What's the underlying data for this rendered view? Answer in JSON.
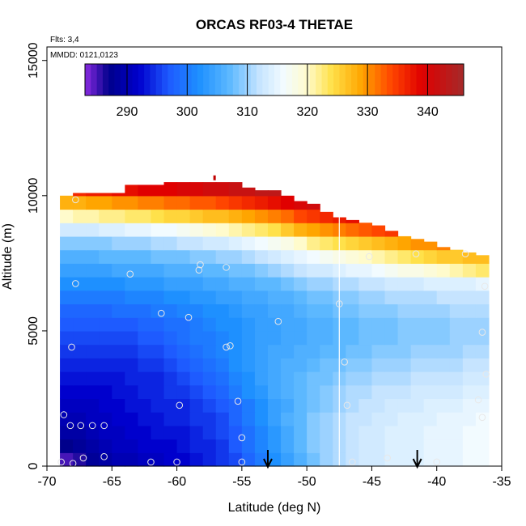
{
  "chart_data": {
    "type": "heatmap",
    "title": "ORCAS RF03-4 THETAE",
    "annotations": [
      "Flts: 3,4",
      "MMDD: 0121,0123"
    ],
    "xlabel": "Latitude (deg N)",
    "ylabel": "Altitude (m)",
    "xlim": [
      -70,
      -35
    ],
    "ylim": [
      0,
      15500
    ],
    "x_ticks": [
      -70,
      -65,
      -60,
      -55,
      -50,
      -45,
      -40,
      -35
    ],
    "y_ticks": [
      0,
      5000,
      10000,
      15000
    ],
    "colorbar": {
      "range": [
        283,
        346
      ],
      "ticks": [
        290,
        300,
        310,
        320,
        330,
        340
      ],
      "stops": [
        {
          "v": 283,
          "c": "#8b2be2"
        },
        {
          "v": 287,
          "c": "#00008b"
        },
        {
          "v": 292,
          "c": "#0000cd"
        },
        {
          "v": 297,
          "c": "#1e5bff"
        },
        {
          "v": 302,
          "c": "#1e90ff"
        },
        {
          "v": 307,
          "c": "#5cb8ff"
        },
        {
          "v": 312,
          "c": "#c6e4ff"
        },
        {
          "v": 316,
          "c": "#f2fbff"
        },
        {
          "v": 320,
          "c": "#fffbcc"
        },
        {
          "v": 324,
          "c": "#ffe14a"
        },
        {
          "v": 329,
          "c": "#ffa500"
        },
        {
          "v": 334,
          "c": "#ff4500"
        },
        {
          "v": 339,
          "c": "#e00000"
        },
        {
          "v": 346,
          "c": "#a52a2a"
        }
      ]
    },
    "field": {
      "lat_edges": [
        -69,
        -68,
        -67,
        -66,
        -65,
        -64,
        -63,
        -62,
        -61,
        -60,
        -59,
        -58,
        -57,
        -56,
        -55,
        -54,
        -53,
        -52,
        -51,
        -50,
        -49,
        -48,
        -47,
        -46,
        -45,
        -44,
        -43,
        -42,
        -41,
        -40,
        -39,
        -38,
        -37,
        -36
      ],
      "alt_edges": [
        0,
        500,
        1000,
        1500,
        2000,
        2500,
        3000,
        3500,
        4000,
        4500,
        5000,
        5500,
        6000,
        6500,
        7000,
        7500,
        8000,
        8500,
        9000,
        9500,
        10000,
        10500,
        11000
      ],
      "data_top_alt": [
        10000,
        10100,
        10100,
        10100,
        10100,
        10400,
        10400,
        10400,
        10500,
        10500,
        10500,
        10500,
        10500,
        10500,
        10300,
        10200,
        10200,
        10000,
        9800,
        9700,
        9400,
        9200,
        9100,
        9000,
        8900,
        8700,
        8500,
        8400,
        8300,
        8100,
        8000,
        7900,
        7800
      ],
      "theta_e": [
        [
          285,
          286,
          288,
          289,
          290,
          290,
          291,
          291,
          292,
          292,
          293,
          294,
          295,
          296,
          298,
          300,
          302,
          304,
          306,
          308,
          310,
          311,
          312,
          313,
          313,
          314,
          314,
          314,
          315,
          315,
          315,
          316,
          316
        ],
        [
          287,
          288,
          289,
          290,
          291,
          291,
          292,
          292,
          292,
          293,
          294,
          294,
          295,
          297,
          299,
          301,
          303,
          305,
          307,
          309,
          310,
          311,
          312,
          313,
          313,
          314,
          314,
          314,
          315,
          315,
          315,
          316,
          316
        ],
        [
          289,
          289,
          290,
          291,
          291,
          292,
          292,
          293,
          293,
          293,
          294,
          295,
          296,
          297,
          299,
          301,
          303,
          305,
          307,
          309,
          310,
          311,
          312,
          313,
          313,
          314,
          314,
          314,
          315,
          315,
          315,
          316,
          316
        ],
        [
          290,
          290,
          291,
          291,
          292,
          292,
          293,
          293,
          294,
          294,
          295,
          295,
          296,
          298,
          300,
          302,
          304,
          306,
          307,
          309,
          310,
          311,
          312,
          312,
          313,
          313,
          314,
          314,
          314,
          315,
          315,
          315,
          316
        ],
        [
          291,
          291,
          291,
          292,
          292,
          293,
          293,
          294,
          294,
          294,
          295,
          296,
          297,
          298,
          300,
          302,
          304,
          305,
          307,
          308,
          309,
          310,
          311,
          312,
          312,
          313,
          313,
          313,
          314,
          314,
          314,
          315,
          315
        ],
        [
          292,
          292,
          292,
          292,
          293,
          293,
          294,
          294,
          295,
          295,
          296,
          297,
          298,
          300,
          302,
          303,
          305,
          306,
          307,
          308,
          309,
          310,
          311,
          311,
          312,
          312,
          312,
          313,
          313,
          313,
          313,
          314,
          314
        ],
        [
          293,
          293,
          293,
          293,
          293,
          294,
          294,
          294,
          295,
          296,
          297,
          298,
          299,
          301,
          302,
          304,
          305,
          306,
          307,
          308,
          308,
          309,
          310,
          310,
          311,
          311,
          311,
          312,
          312,
          312,
          312,
          313,
          313
        ],
        [
          294,
          294,
          294,
          294,
          294,
          294,
          295,
          295,
          296,
          297,
          298,
          299,
          300,
          302,
          303,
          304,
          305,
          306,
          306,
          307,
          308,
          308,
          309,
          309,
          310,
          310,
          310,
          311,
          311,
          311,
          311,
          312,
          312
        ],
        [
          295,
          295,
          295,
          295,
          295,
          295,
          296,
          296,
          297,
          298,
          299,
          300,
          301,
          302,
          303,
          304,
          305,
          305,
          306,
          306,
          307,
          307,
          308,
          308,
          309,
          309,
          309,
          310,
          310,
          310,
          310,
          311,
          311
        ],
        [
          296,
          296,
          296,
          296,
          296,
          296,
          297,
          297,
          298,
          299,
          300,
          300,
          301,
          302,
          303,
          304,
          304,
          305,
          305,
          306,
          306,
          307,
          307,
          308,
          308,
          308,
          309,
          309,
          309,
          309,
          310,
          310,
          310
        ],
        [
          297,
          297,
          297,
          297,
          297,
          297,
          298,
          298,
          299,
          299,
          300,
          301,
          302,
          302,
          303,
          304,
          304,
          305,
          305,
          306,
          306,
          307,
          307,
          308,
          308,
          308,
          309,
          309,
          309,
          309,
          310,
          310,
          310
        ],
        [
          298,
          298,
          298,
          298,
          299,
          299,
          299,
          300,
          300,
          301,
          301,
          302,
          302,
          303,
          304,
          304,
          305,
          305,
          306,
          307,
          307,
          308,
          308,
          309,
          309,
          309,
          310,
          310,
          310,
          310,
          311,
          311,
          311
        ],
        [
          300,
          300,
          300,
          300,
          300,
          301,
          301,
          301,
          302,
          302,
          303,
          303,
          304,
          304,
          305,
          305,
          306,
          306,
          307,
          308,
          308,
          309,
          309,
          310,
          310,
          311,
          311,
          311,
          311,
          312,
          312,
          312,
          312
        ],
        [
          302,
          302,
          302,
          302,
          302,
          303,
          303,
          303,
          304,
          304,
          304,
          305,
          305,
          306,
          306,
          307,
          307,
          308,
          309,
          310,
          310,
          311,
          311,
          312,
          312,
          313,
          313,
          313,
          314,
          314,
          314,
          314,
          315
        ],
        [
          304,
          304,
          304,
          304,
          305,
          305,
          305,
          305,
          306,
          306,
          306,
          307,
          307,
          308,
          308,
          309,
          310,
          311,
          312,
          313,
          313,
          314,
          315,
          315,
          316,
          317,
          318,
          318,
          319,
          320,
          321,
          322,
          323
        ],
        [
          306,
          306,
          306,
          307,
          307,
          307,
          307,
          308,
          308,
          308,
          309,
          309,
          310,
          310,
          311,
          312,
          313,
          314,
          315,
          316,
          317,
          318,
          319,
          320,
          321,
          322,
          323,
          324,
          325,
          326,
          326,
          327,
          327
        ],
        [
          309,
          309,
          309,
          309,
          310,
          310,
          310,
          311,
          311,
          312,
          312,
          313,
          313,
          314,
          315,
          316,
          317,
          318,
          320,
          322,
          323,
          324,
          325,
          326,
          327,
          328,
          329,
          330,
          330,
          331,
          331,
          331,
          331
        ],
        [
          313,
          313,
          313,
          314,
          314,
          315,
          315,
          316,
          316,
          317,
          318,
          319,
          320,
          321,
          322,
          323,
          324,
          326,
          328,
          329,
          330,
          331,
          332,
          333,
          334,
          335,
          335,
          335,
          335,
          335,
          335,
          335,
          335
        ],
        [
          320,
          321,
          321,
          322,
          322,
          323,
          323,
          324,
          325,
          325,
          326,
          327,
          327,
          328,
          329,
          330,
          331,
          332,
          334,
          335,
          336,
          337,
          338,
          339,
          339,
          339,
          339,
          339,
          339,
          339,
          339,
          339,
          339
        ],
        [
          328,
          328,
          329,
          329,
          330,
          330,
          331,
          331,
          332,
          332,
          333,
          333,
          334,
          335,
          336,
          337,
          338,
          339,
          340,
          341,
          341,
          341,
          341,
          341,
          341,
          341,
          341,
          341,
          341,
          341,
          341,
          341,
          341
        ],
        [
          336,
          336,
          337,
          337,
          338,
          338,
          339,
          339,
          339,
          340,
          340,
          341,
          341,
          342,
          342,
          343,
          343,
          343,
          343,
          343,
          343,
          343,
          343,
          343,
          343,
          343,
          343,
          343,
          343,
          343,
          343,
          343,
          343
        ],
        [
          344,
          344,
          344,
          344,
          344,
          344,
          344,
          344,
          344,
          344,
          344,
          344,
          344,
          344,
          344,
          344,
          344,
          344,
          344,
          344,
          344,
          344,
          344,
          344,
          344,
          344,
          344,
          344,
          344,
          344,
          344,
          344,
          344
        ]
      ]
    },
    "markers": [
      {
        "lat": -68.9,
        "alt": 150
      },
      {
        "lat": -68.0,
        "alt": 100
      },
      {
        "lat": -67.2,
        "alt": 300
      },
      {
        "lat": -65.6,
        "alt": 350
      },
      {
        "lat": -62.0,
        "alt": 150
      },
      {
        "lat": -60.0,
        "alt": 150
      },
      {
        "lat": -55.0,
        "alt": 150
      },
      {
        "lat": -46.5,
        "alt": 150
      },
      {
        "lat": -43.8,
        "alt": 300
      },
      {
        "lat": -40.0,
        "alt": 150
      },
      {
        "lat": -68.7,
        "alt": 1900
      },
      {
        "lat": -68.2,
        "alt": 1500
      },
      {
        "lat": -67.4,
        "alt": 1500
      },
      {
        "lat": -66.5,
        "alt": 1500
      },
      {
        "lat": -65.6,
        "alt": 1500
      },
      {
        "lat": -55.0,
        "alt": 1050
      },
      {
        "lat": -59.8,
        "alt": 2250
      },
      {
        "lat": -55.3,
        "alt": 2400
      },
      {
        "lat": -46.9,
        "alt": 2250
      },
      {
        "lat": -36.8,
        "alt": 2450
      },
      {
        "lat": -36.5,
        "alt": 1800
      },
      {
        "lat": -68.1,
        "alt": 4400
      },
      {
        "lat": -55.9,
        "alt": 4450
      },
      {
        "lat": -56.2,
        "alt": 4400
      },
      {
        "lat": -47.1,
        "alt": 3850
      },
      {
        "lat": -36.2,
        "alt": 3400
      },
      {
        "lat": -67.8,
        "alt": 6750
      },
      {
        "lat": -63.6,
        "alt": 7100
      },
      {
        "lat": -61.2,
        "alt": 5650
      },
      {
        "lat": -59.1,
        "alt": 5500
      },
      {
        "lat": -52.2,
        "alt": 5350
      },
      {
        "lat": -47.5,
        "alt": 6000
      },
      {
        "lat": -36.5,
        "alt": 4950
      },
      {
        "lat": -36.3,
        "alt": 6650
      },
      {
        "lat": -58.3,
        "alt": 7250
      },
      {
        "lat": -58.2,
        "alt": 7450
      },
      {
        "lat": -56.2,
        "alt": 7350
      },
      {
        "lat": -45.2,
        "alt": 7750
      },
      {
        "lat": -41.6,
        "alt": 7850
      },
      {
        "lat": -37.8,
        "alt": 7850
      },
      {
        "lat": -67.8,
        "alt": 9850
      }
    ],
    "arrows": [
      {
        "lat": -53.0
      },
      {
        "lat": -41.5
      }
    ],
    "vline_lat": -47.5
  }
}
